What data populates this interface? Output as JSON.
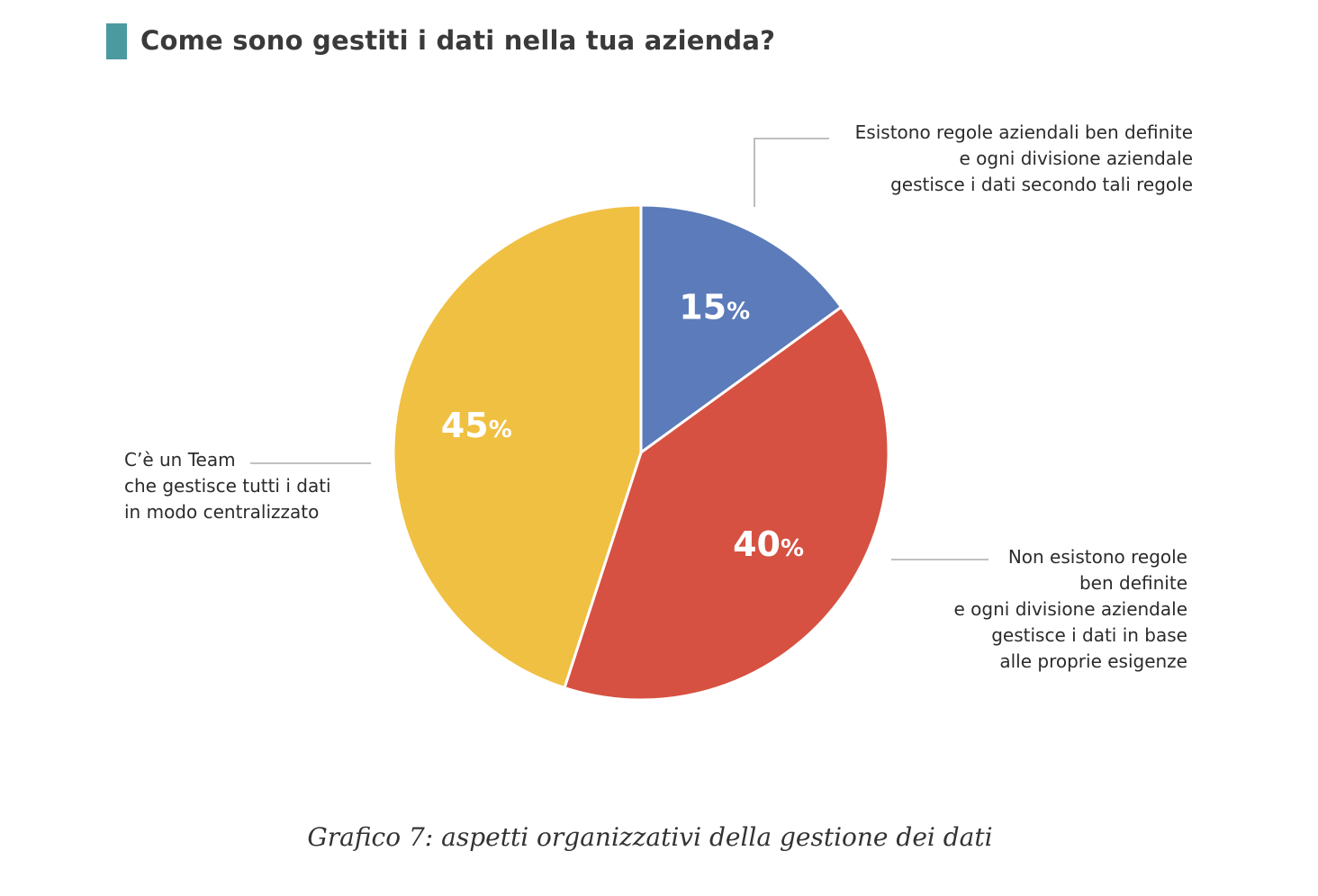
{
  "title": "Come sono gestiti i dati nella tua azienda?",
  "accent_color": "#4a9aa0",
  "caption": "Grafico 7: aspetti organizzativi della gestione dei dati",
  "chart_data": {
    "type": "pie",
    "title": "Come sono gestiti i dati nella tua azienda?",
    "start_angle_deg": 0,
    "direction": "clockwise",
    "slices": [
      {
        "label": "Esistono regole aziendali ben definite\ne ogni divisione aziendale\ngestisce i dati secondo tali regole",
        "value": 15,
        "value_label": "15",
        "color": "#5b7bba"
      },
      {
        "label": "Non esistono regole\nben definite\ne ogni divisione aziendale\ngestisce i dati in base\nalle proprie esigenze",
        "value": 40,
        "value_label": "40",
        "color": "#d65141"
      },
      {
        "label": "C’è un Team\nche gestisce tutti i dati\nin modo centralizzato",
        "value": 45,
        "value_label": "45",
        "color": "#f0c043"
      }
    ],
    "unit": "%"
  }
}
